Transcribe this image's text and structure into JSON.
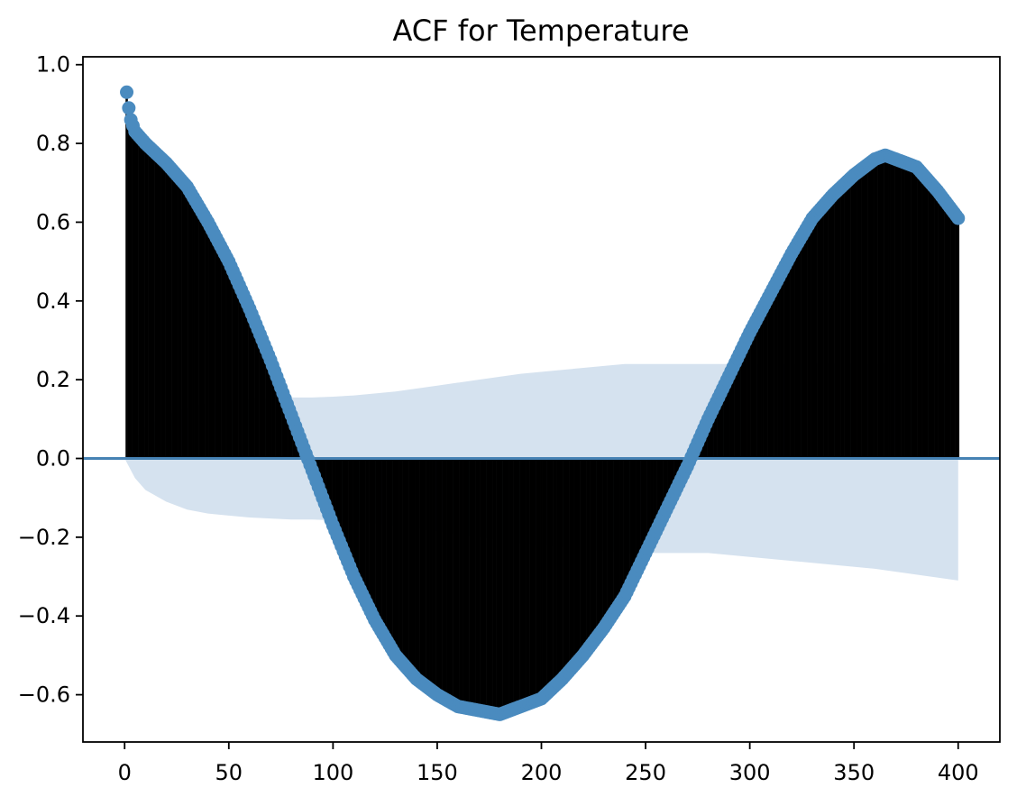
{
  "chart_data": {
    "type": "stem",
    "title": "ACF for Temperature",
    "xlabel": "",
    "ylabel": "",
    "xlim": [
      -20,
      420
    ],
    "ylim": [
      -0.72,
      1.02
    ],
    "x_ticks": [
      0,
      50,
      100,
      150,
      200,
      250,
      300,
      350,
      400
    ],
    "x_tick_labels": [
      "0",
      "50",
      "100",
      "150",
      "200",
      "250",
      "300",
      "350",
      "400"
    ],
    "y_ticks": [
      1.0,
      0.8,
      0.6,
      0.4,
      0.2,
      0.0,
      -0.2,
      -0.4,
      -0.6
    ],
    "y_tick_labels": [
      "1.0",
      "0.8",
      "0.6",
      "0.4",
      "0.2",
      "0.0",
      "−0.2",
      "−0.4",
      "−0.6"
    ],
    "grid": false,
    "lags": {
      "start": 0,
      "end": 400
    },
    "acf": {
      "lags": [
        1,
        2,
        3,
        5,
        10,
        20,
        30,
        40,
        50,
        60,
        70,
        80,
        90,
        100,
        110,
        120,
        130,
        140,
        150,
        160,
        170,
        180,
        190,
        200,
        210,
        220,
        230,
        240,
        250,
        260,
        270,
        280,
        290,
        300,
        310,
        320,
        330,
        340,
        350,
        360,
        365,
        370,
        380,
        390,
        400
      ],
      "values": [
        0.93,
        0.89,
        0.86,
        0.83,
        0.8,
        0.75,
        0.69,
        0.6,
        0.5,
        0.38,
        0.25,
        0.11,
        -0.03,
        -0.17,
        -0.3,
        -0.41,
        -0.5,
        -0.56,
        -0.6,
        -0.63,
        -0.64,
        -0.65,
        -0.63,
        -0.61,
        -0.56,
        -0.5,
        -0.43,
        -0.35,
        -0.24,
        -0.13,
        -0.02,
        0.1,
        0.21,
        0.32,
        0.42,
        0.52,
        0.61,
        0.67,
        0.72,
        0.76,
        0.77,
        0.76,
        0.74,
        0.68,
        0.61
      ]
    },
    "confidence_band": {
      "lags": [
        0,
        2,
        5,
        10,
        20,
        30,
        40,
        60,
        80,
        90,
        100,
        110,
        130,
        150,
        170,
        190,
        210,
        230,
        240,
        250,
        280,
        300,
        320,
        340,
        360,
        380,
        400
      ],
      "upper": [
        0.0,
        0.02,
        0.05,
        0.08,
        0.11,
        0.13,
        0.14,
        0.15,
        0.155,
        0.155,
        0.157,
        0.16,
        0.17,
        0.185,
        0.2,
        0.215,
        0.225,
        0.235,
        0.24,
        0.24,
        0.24,
        0.24,
        0.24,
        0.24,
        0.24,
        0.24,
        0.24
      ],
      "lower": [
        0.0,
        -0.02,
        -0.05,
        -0.08,
        -0.11,
        -0.13,
        -0.14,
        -0.15,
        -0.155,
        -0.155,
        -0.157,
        -0.16,
        -0.17,
        -0.185,
        -0.2,
        -0.215,
        -0.225,
        -0.235,
        -0.24,
        -0.24,
        -0.24,
        -0.25,
        -0.26,
        -0.27,
        -0.28,
        -0.295,
        -0.31
      ]
    },
    "colors": {
      "points": "#4a8bbf",
      "stems": "#000000",
      "zero_line": "#4682b4",
      "band": "#d5e2ef",
      "axes": "#000000"
    }
  }
}
